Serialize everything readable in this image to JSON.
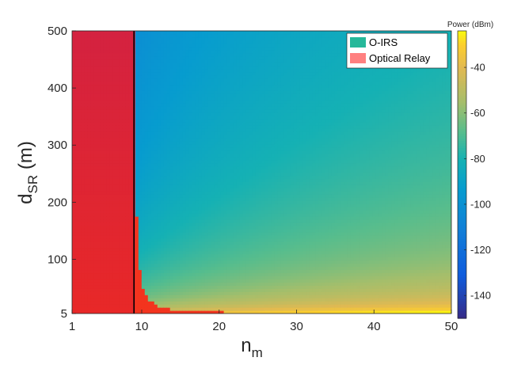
{
  "chart_data": {
    "type": "heatmap",
    "title": "",
    "xlabel": {
      "main": "n",
      "sub": "m"
    },
    "ylabel": {
      "main": "d",
      "sub": "SR",
      "suffix": " (m)"
    },
    "xlim": [
      1,
      50
    ],
    "ylim": [
      5,
      500
    ],
    "xticks": [
      "1",
      "10",
      "20",
      "30",
      "40",
      "50"
    ],
    "xtick_values": [
      1,
      10,
      20,
      30,
      40,
      50
    ],
    "yticks": [
      "5",
      "100",
      "200",
      "300",
      "400",
      "500"
    ],
    "ytick_values": [
      5,
      100,
      200,
      300,
      400,
      500
    ],
    "boundary_n_m": 9,
    "colorbar": {
      "title": "Power (dBm)",
      "range": [
        -150,
        -24
      ],
      "ticks": [
        "-40",
        "-60",
        "-80",
        "-100",
        "-120",
        "-140"
      ],
      "tick_values": [
        -40,
        -60,
        -80,
        -100,
        -120,
        -140
      ]
    },
    "legend": {
      "placement": "top-right",
      "entries": [
        {
          "label": "O-IRS",
          "color": "#26b89a"
        },
        {
          "label": "Optical Relay",
          "color": "#ff8080"
        }
      ]
    },
    "colors": {
      "relay_region": "#d81e3f",
      "boundary": "#000000"
    }
  }
}
